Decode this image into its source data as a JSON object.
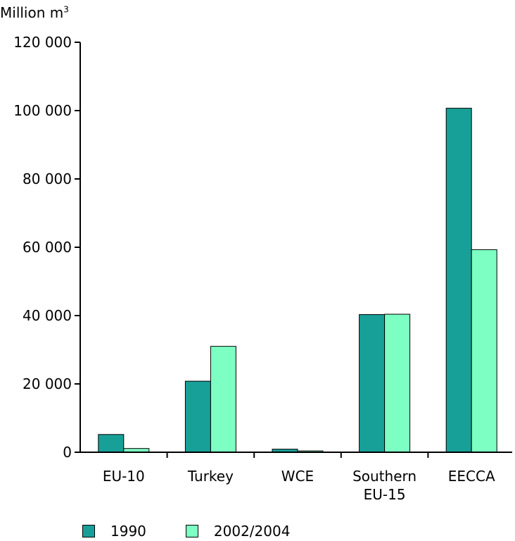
{
  "chart_data": {
    "type": "bar",
    "ylabel": "Million m",
    "ylabel_superscript": "3",
    "categories": [
      [
        "EU-10"
      ],
      [
        "Turkey"
      ],
      [
        "WCE"
      ],
      [
        "Southern",
        "EU-15"
      ],
      [
        "EECCA"
      ]
    ],
    "series": [
      {
        "name": "1990",
        "color": "#17a098",
        "values": [
          5200,
          20800,
          900,
          40300,
          100700
        ]
      },
      {
        "name": "2002/2004",
        "color": "#7dffc3",
        "values": [
          1100,
          31000,
          400,
          40400,
          59300
        ]
      }
    ],
    "ylim": [
      0,
      120000
    ],
    "yticks": [
      0,
      20000,
      40000,
      60000,
      80000,
      100000,
      120000
    ],
    "ytick_labels": [
      "0",
      "20 000",
      "40 000",
      "60 000",
      "80 000",
      "100 000",
      "120 000"
    ],
    "grid": false,
    "legend_position": "bottom-left"
  }
}
